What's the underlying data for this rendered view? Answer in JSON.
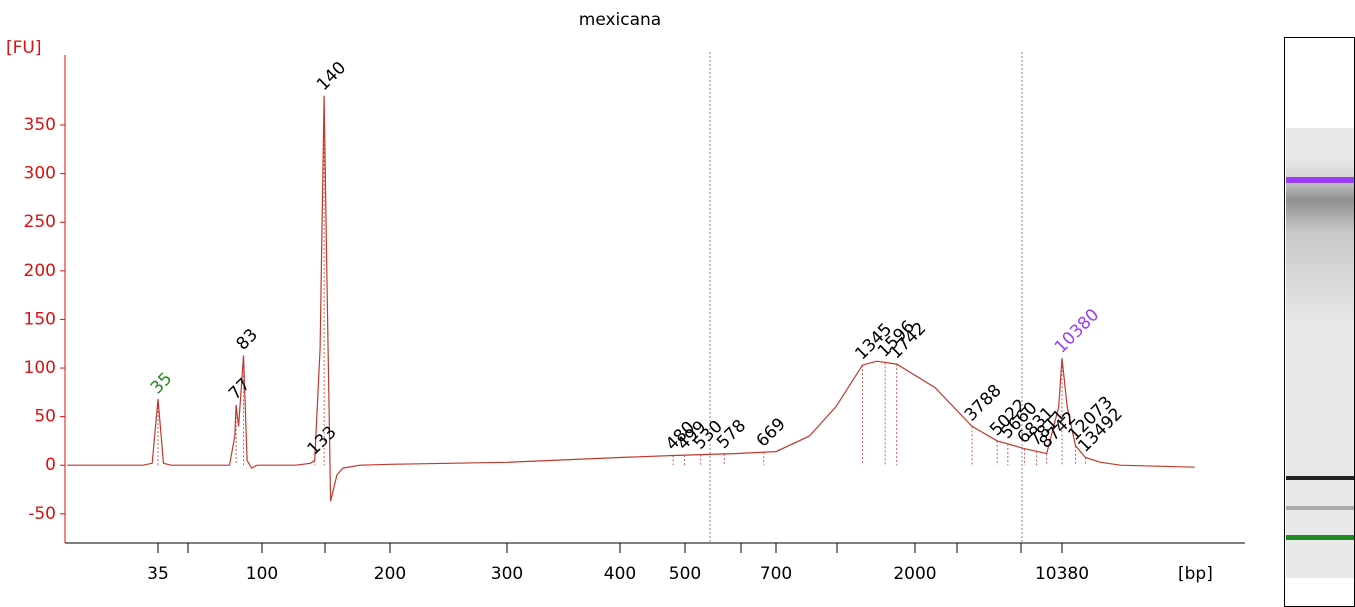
{
  "chart_data": {
    "type": "line",
    "title": "mexicana",
    "ylabel": "[FU]",
    "xlabel": "[bp]",
    "color": "#c0392b",
    "axis_color": "#dd1111",
    "x": [
      14,
      30,
      33,
      35,
      37,
      40,
      72,
      76,
      77,
      79,
      83,
      86,
      90,
      95,
      120,
      130,
      133,
      137,
      140,
      142,
      145,
      150,
      155,
      170,
      200,
      300,
      400,
      480,
      600,
      700,
      900,
      1100,
      1345,
      1500,
      1742,
      2500,
      3788,
      5022,
      6831,
      8742,
      10000,
      10380,
      11000,
      12073,
      13492,
      16000,
      20000,
      46000
    ],
    "values": [
      0,
      0,
      2,
      68,
      2,
      0,
      0,
      30,
      62,
      40,
      113,
      5,
      -3,
      0,
      0,
      2,
      5,
      120,
      380,
      200,
      -37,
      -10,
      -3,
      0,
      1,
      3,
      8,
      10,
      12,
      14,
      30,
      60,
      103,
      107,
      104,
      80,
      40,
      25,
      17,
      12,
      60,
      110,
      60,
      20,
      8,
      3,
      0,
      -2
    ],
    "ylim": [
      -80,
      422
    ],
    "yticks": [
      -50,
      0,
      50,
      100,
      150,
      200,
      250,
      300,
      350
    ],
    "xticks": [
      35,
      100,
      200,
      300,
      400,
      500,
      700,
      2000,
      10380
    ],
    "peak_labels": [
      35,
      77,
      83,
      133,
      140,
      480,
      499,
      530,
      578,
      669,
      1345,
      1596,
      1742,
      3788,
      5022,
      5660,
      6831,
      7811,
      8742,
      10380,
      12073,
      13492
    ],
    "peak_label_colors": [
      "#1f8a1f",
      "#000000",
      "#000000",
      "#000000",
      "#000000",
      "#000000",
      "#000000",
      "#000000",
      "#000000",
      "#000000",
      "#000000",
      "#000000",
      "#000000",
      "#000000",
      "#000000",
      "#000000",
      "#000000",
      "#000000",
      "#000000",
      "#9b3dff",
      "#000000",
      "#000000"
    ]
  }
}
